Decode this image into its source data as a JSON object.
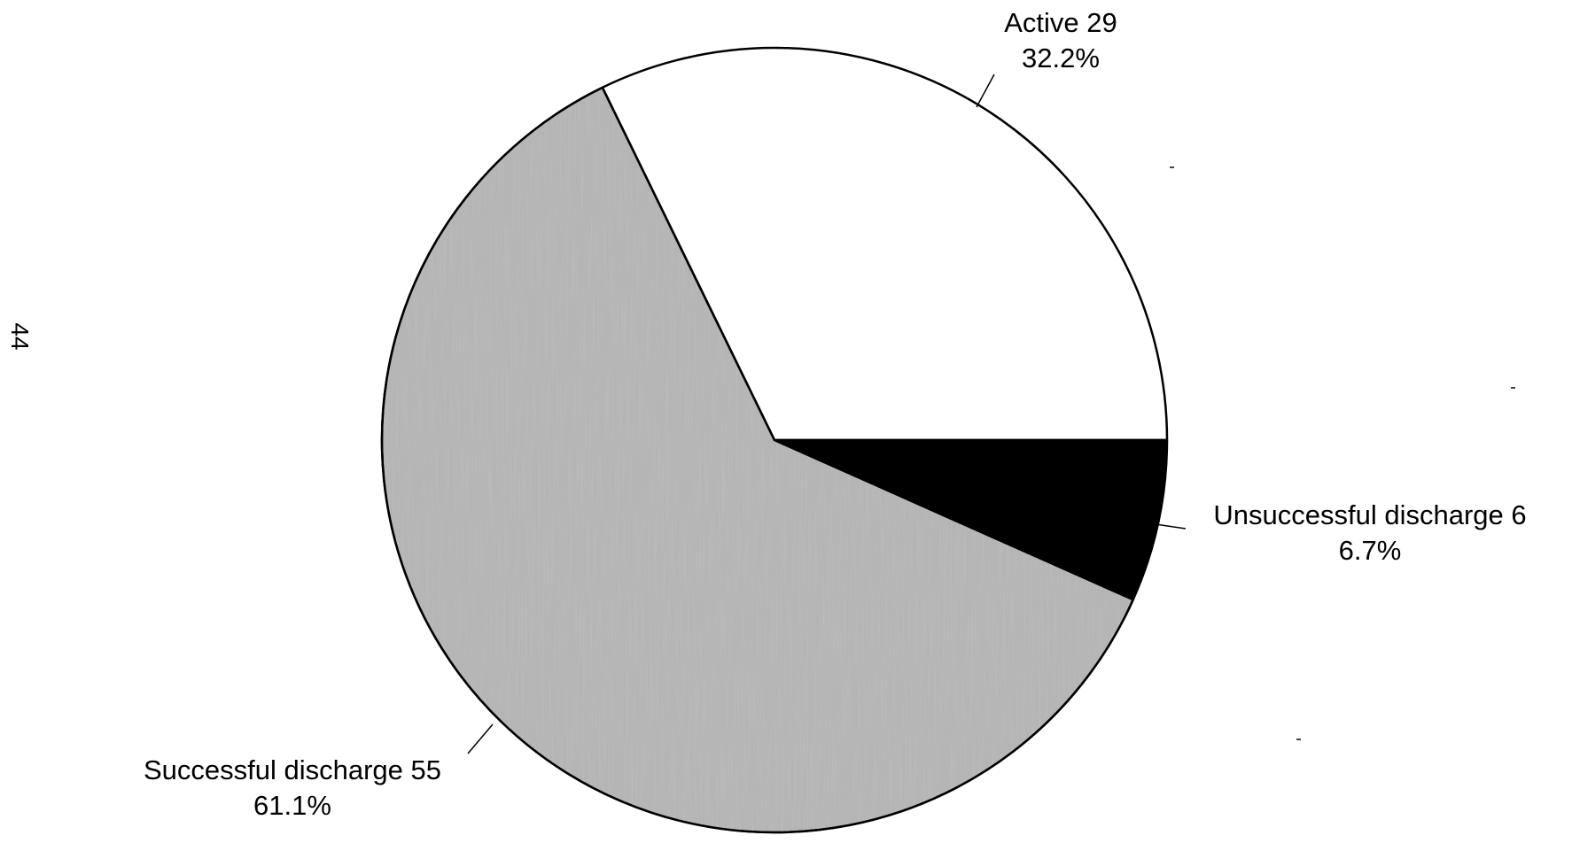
{
  "page_number": "44",
  "chart_data": {
    "type": "pie",
    "title": "",
    "slices": [
      {
        "label": "Active",
        "count": 29,
        "percent": "32.2%",
        "fill": "#ffffff"
      },
      {
        "label": "Unsuccessful discharge",
        "count": 6,
        "percent": "6.7%",
        "fill": "#000000"
      },
      {
        "label": "Successful discharge",
        "count": 55,
        "percent": "61.1%",
        "fill": "#b5b5b5"
      }
    ]
  }
}
